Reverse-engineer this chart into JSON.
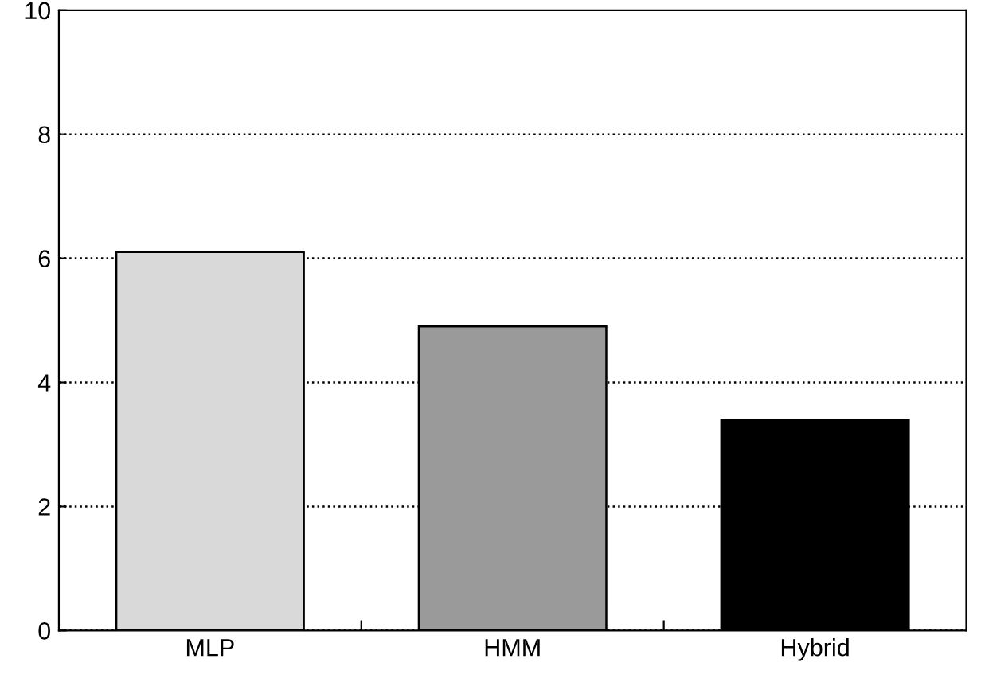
{
  "chart_data": {
    "type": "bar",
    "categories": [
      "MLP",
      "HMM",
      "Hybrid"
    ],
    "values": [
      6.1,
      4.9,
      3.4
    ],
    "colors": [
      "#d9d9d9",
      "#9a9a9a",
      "#000000"
    ],
    "ylim": [
      0,
      10
    ],
    "yticks": [
      0,
      2,
      4,
      6,
      8,
      10
    ],
    "grid": "y",
    "line_style": "dotted"
  }
}
